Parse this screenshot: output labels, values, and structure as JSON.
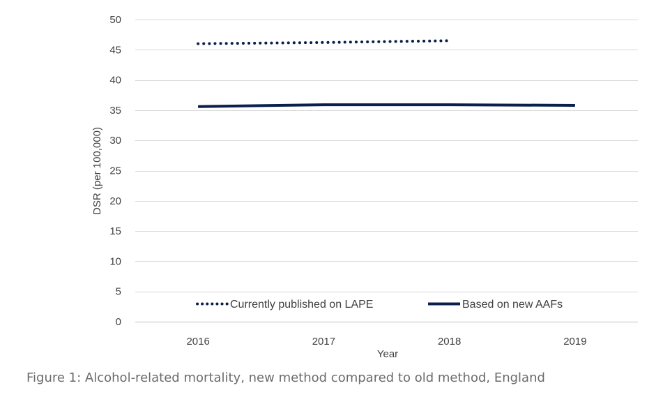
{
  "caption": "Figure 1: Alcohol-related mortality, new method compared to old method, England",
  "chart_data": {
    "type": "line",
    "title": "",
    "xlabel": "Year",
    "ylabel": "DSR (per 100,000)",
    "categories": [
      "2016",
      "2017",
      "2018",
      "2019"
    ],
    "ylim": [
      0,
      50
    ],
    "yticks": [
      0,
      5,
      10,
      15,
      20,
      25,
      30,
      35,
      40,
      45,
      50
    ],
    "grid": true,
    "legend_position": "bottom-inside",
    "series": [
      {
        "name": "Currently published on LAPE",
        "style": "dotted",
        "color": "#0b1f4d",
        "values": [
          46.0,
          46.2,
          46.5,
          null
        ]
      },
      {
        "name": "Based on new AAFs",
        "style": "solid",
        "color": "#0b1f4d",
        "values": [
          35.6,
          35.9,
          35.9,
          35.8
        ]
      }
    ]
  }
}
